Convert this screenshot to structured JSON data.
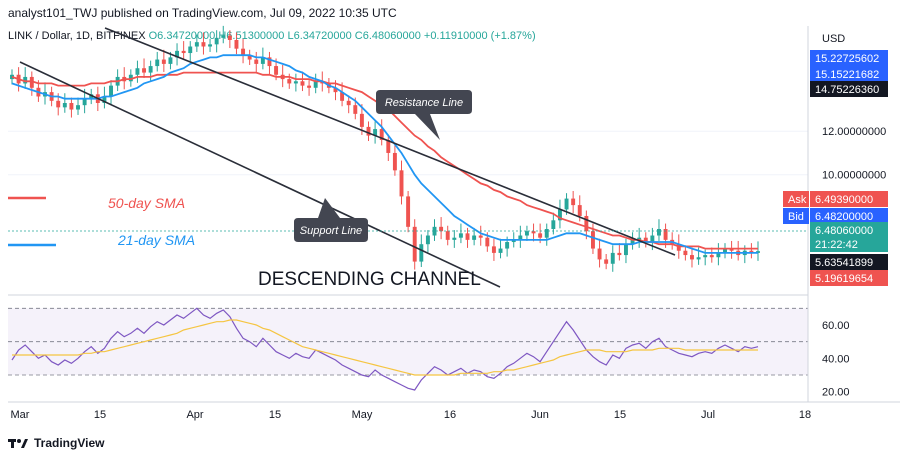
{
  "header": {
    "publisher": "analyst101_TWJ published on TradingView.com, Jul 09, 2022 10:35 UTC"
  },
  "legend": {
    "symbol": "LINK / Dollar, 1D, BITFINEX",
    "open": "O6.34720000",
    "high": "H6.51300000",
    "low": "L6.34720000",
    "close": "C6.48060000",
    "change": "+0.11910000 (+1.87%)"
  },
  "footer": {
    "brand": "TradingView"
  },
  "colors": {
    "up": "#26a69a",
    "down": "#ef5350",
    "sma50": "#ef5350",
    "sma21": "#2196f3",
    "rsi": "#7e57c2",
    "rsi_ma": "#f5c542",
    "channel": "#2a2e39"
  },
  "annotations": {
    "resistance": "Resistance Line",
    "support": "Support Line",
    "channel": "DESCENDING CHANNEL",
    "sma50": "50-day SMA",
    "sma21": "21-day SMA"
  },
  "chart_data": {
    "type": "line",
    "price_axis": {
      "label": "USD",
      "ticks": [
        10,
        12
      ],
      "tick_labels": [
        "10.00000000",
        "12.00000000"
      ],
      "range": [
        4.6,
        16.2
      ]
    },
    "rsi_axis": {
      "ticks": [
        20,
        40,
        60
      ],
      "tick_labels": [
        "20.00",
        "40.00",
        "60.00"
      ],
      "range": [
        15,
        75
      ],
      "band": [
        30,
        70
      ]
    },
    "x_ticks": [
      "Mar",
      "15",
      "Apr",
      "15",
      "May",
      "16",
      "Jun",
      "15",
      "Jul",
      "18"
    ],
    "price_labels": [
      {
        "label": "",
        "value": "15.22725602",
        "color": "#2962ff"
      },
      {
        "label": "",
        "value": "15.15221682",
        "color": "#2962ff"
      },
      {
        "label": "",
        "value": "14.75226360",
        "color": "#131722"
      },
      {
        "label": "Ask",
        "value": "6.49390000",
        "color": "#ef5350"
      },
      {
        "label": "Bid",
        "value": "6.48200000",
        "color": "#2962ff"
      },
      {
        "label": "",
        "value": "6.48060000",
        "color": "#26a69a"
      },
      {
        "label": "",
        "value": "21:22:42",
        "color": "#26a69a"
      },
      {
        "label": "",
        "value": "5.63541899",
        "color": "#131722"
      },
      {
        "label": "",
        "value": "5.19619654",
        "color": "#ef5350"
      }
    ],
    "closes": [
      14.6,
      14.2,
      14.5,
      14.0,
      13.6,
      13.8,
      13.4,
      13.1,
      13.3,
      13.0,
      13.2,
      13.5,
      13.7,
      13.3,
      13.6,
      14.1,
      14.5,
      14.3,
      14.6,
      14.9,
      14.7,
      15.0,
      15.3,
      15.1,
      15.4,
      15.7,
      15.6,
      15.9,
      16.1,
      15.9,
      16.0,
      16.3,
      16.4,
      16.2,
      15.8,
      15.5,
      15.3,
      15.1,
      15.4,
      15.0,
      14.6,
      14.4,
      14.2,
      14.3,
      14.1,
      14.0,
      14.3,
      14.2,
      14.0,
      13.8,
      13.4,
      13.2,
      12.8,
      12.2,
      11.8,
      12.1,
      11.6,
      11.0,
      10.2,
      9.0,
      7.6,
      6.0,
      6.8,
      7.2,
      7.6,
      7.4,
      7.0,
      7.1,
      7.3,
      7.0,
      7.2,
      7.1,
      6.7,
      6.4,
      6.6,
      6.9,
      7.0,
      7.2,
      7.4,
      7.3,
      7.1,
      7.5,
      7.9,
      8.4,
      8.9,
      8.6,
      8.1,
      7.4,
      6.6,
      6.1,
      5.9,
      6.4,
      6.3,
      6.8,
      7.0,
      7.1,
      6.9,
      7.2,
      7.5,
      7.0,
      6.8,
      6.5,
      6.3,
      6.1,
      6.2,
      6.3,
      6.2,
      6.4,
      6.6,
      6.5,
      6.3,
      6.5,
      6.4,
      6.48
    ],
    "sma50": [
      14.5,
      14.4,
      14.3,
      14.3,
      14.2,
      14.2,
      14.2,
      14.1,
      14.1,
      14.1,
      14.1,
      14.1,
      14.2,
      14.2,
      14.2,
      14.3,
      14.3,
      14.4,
      14.4,
      14.5,
      14.5,
      14.5,
      14.6,
      14.6,
      14.6,
      14.6,
      14.7,
      14.7,
      14.7,
      14.7,
      14.7,
      14.7,
      14.7,
      14.7,
      14.7,
      14.7,
      14.7,
      14.7,
      14.6,
      14.6,
      14.5,
      14.5,
      14.5,
      14.4,
      14.4,
      14.4,
      14.3,
      14.3,
      14.2,
      14.2,
      14.1,
      14.0,
      13.9,
      13.8,
      13.6,
      13.4,
      13.2,
      13.0,
      12.7,
      12.4,
      12.1,
      11.8,
      11.6,
      11.3,
      11.1,
      10.8,
      10.6,
      10.4,
      10.2,
      10.0,
      9.8,
      9.6,
      9.5,
      9.3,
      9.2,
      9.0,
      8.9,
      8.8,
      8.6,
      8.5,
      8.4,
      8.3,
      8.2,
      8.0,
      7.9,
      7.8,
      7.7,
      7.6,
      7.5,
      7.4,
      7.3,
      7.2,
      7.2,
      7.1,
      7.0,
      7.0,
      6.9,
      6.9,
      6.8,
      6.8,
      6.8,
      6.7,
      6.7,
      6.7,
      6.7,
      6.6,
      6.6,
      6.6,
      6.6,
      6.6,
      6.6,
      6.6,
      6.6,
      6.6
    ],
    "sma21": [
      14.2,
      14.1,
      14.0,
      13.9,
      13.8,
      13.7,
      13.6,
      13.6,
      13.5,
      13.5,
      13.5,
      13.5,
      13.5,
      13.5,
      13.6,
      13.6,
      13.7,
      13.8,
      13.9,
      14.0,
      14.2,
      14.3,
      14.4,
      14.5,
      14.7,
      14.8,
      14.9,
      15.1,
      15.2,
      15.3,
      15.4,
      15.4,
      15.5,
      15.5,
      15.5,
      15.5,
      15.5,
      15.4,
      15.4,
      15.3,
      15.2,
      15.1,
      15.0,
      14.8,
      14.7,
      14.5,
      14.4,
      14.3,
      14.1,
      14.0,
      13.8,
      13.6,
      13.4,
      13.1,
      12.8,
      12.5,
      12.2,
      11.8,
      11.4,
      11.0,
      10.5,
      10.0,
      9.6,
      9.3,
      9.0,
      8.7,
      8.4,
      8.1,
      7.9,
      7.7,
      7.5,
      7.3,
      7.2,
      7.1,
      7.0,
      7.0,
      7.0,
      7.0,
      7.0,
      7.0,
      7.0,
      7.0,
      7.1,
      7.2,
      7.3,
      7.3,
      7.3,
      7.2,
      7.1,
      7.0,
      6.9,
      6.8,
      6.8,
      6.8,
      6.8,
      6.9,
      6.9,
      6.9,
      6.9,
      6.9,
      6.9,
      6.8,
      6.7,
      6.6,
      6.5,
      6.4,
      6.4,
      6.4,
      6.4,
      6.4,
      6.4,
      6.4,
      6.4,
      6.4
    ],
    "rsi": [
      39,
      45,
      48,
      44,
      40,
      42,
      38,
      36,
      39,
      37,
      40,
      44,
      47,
      43,
      46,
      52,
      56,
      53,
      55,
      58,
      55,
      59,
      62,
      60,
      63,
      66,
      64,
      67,
      70,
      66,
      64,
      67,
      69,
      65,
      58,
      52,
      50,
      47,
      52,
      48,
      44,
      42,
      40,
      43,
      41,
      40,
      45,
      43,
      41,
      39,
      36,
      34,
      32,
      30,
      29,
      33,
      30,
      28,
      26,
      24,
      22,
      21,
      27,
      31,
      35,
      33,
      30,
      32,
      34,
      31,
      33,
      32,
      29,
      28,
      31,
      35,
      37,
      40,
      43,
      41,
      38,
      44,
      50,
      56,
      62,
      57,
      51,
      45,
      41,
      38,
      36,
      42,
      40,
      46,
      48,
      49,
      46,
      50,
      52,
      47,
      45,
      43,
      42,
      41,
      43,
      44,
      43,
      46,
      48,
      46,
      44,
      47,
      46,
      47
    ],
    "rsi_ma": [
      42,
      42,
      42,
      42,
      42,
      42,
      42,
      42,
      42,
      42,
      42,
      43,
      43,
      44,
      44,
      45,
      46,
      47,
      48,
      49,
      50,
      51,
      52,
      53,
      54,
      55,
      57,
      58,
      59,
      60,
      61,
      62,
      62,
      63,
      63,
      62,
      61,
      60,
      58,
      57,
      55,
      53,
      51,
      49,
      47,
      46,
      45,
      44,
      43,
      42,
      41,
      40,
      39,
      38,
      37,
      36,
      35,
      34,
      33,
      32,
      31,
      30,
      30,
      30,
      30,
      30,
      30,
      30,
      31,
      31,
      31,
      31,
      31,
      32,
      32,
      33,
      33,
      34,
      35,
      36,
      37,
      38,
      39,
      41,
      42,
      43,
      44,
      45,
      45,
      45,
      44,
      44,
      44,
      44,
      45,
      45,
      45,
      45,
      46,
      46,
      46,
      46,
      45,
      45,
      45,
      45,
      45,
      45,
      45,
      45,
      45,
      45,
      45,
      45
    ]
  }
}
